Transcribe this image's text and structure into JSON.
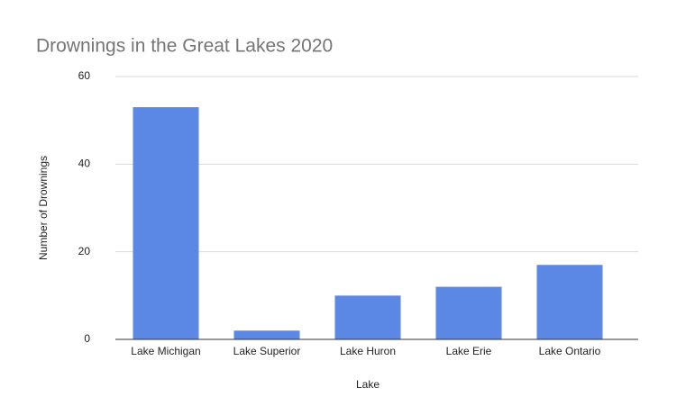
{
  "chart_data": {
    "type": "bar",
    "title": "Drownings in the Great Lakes 2020",
    "x_label": "Lake",
    "y_label": "Number of Drownings",
    "categories": [
      "Lake Michigan",
      "Lake Superior",
      "Lake Huron",
      "Lake Erie",
      "Lake Ontario"
    ],
    "values": [
      53,
      2,
      10,
      12,
      17
    ],
    "color": "#5b87e5",
    "ylim": [
      0,
      60
    ],
    "yticks": [
      0,
      20,
      40,
      60
    ],
    "grid": true
  }
}
